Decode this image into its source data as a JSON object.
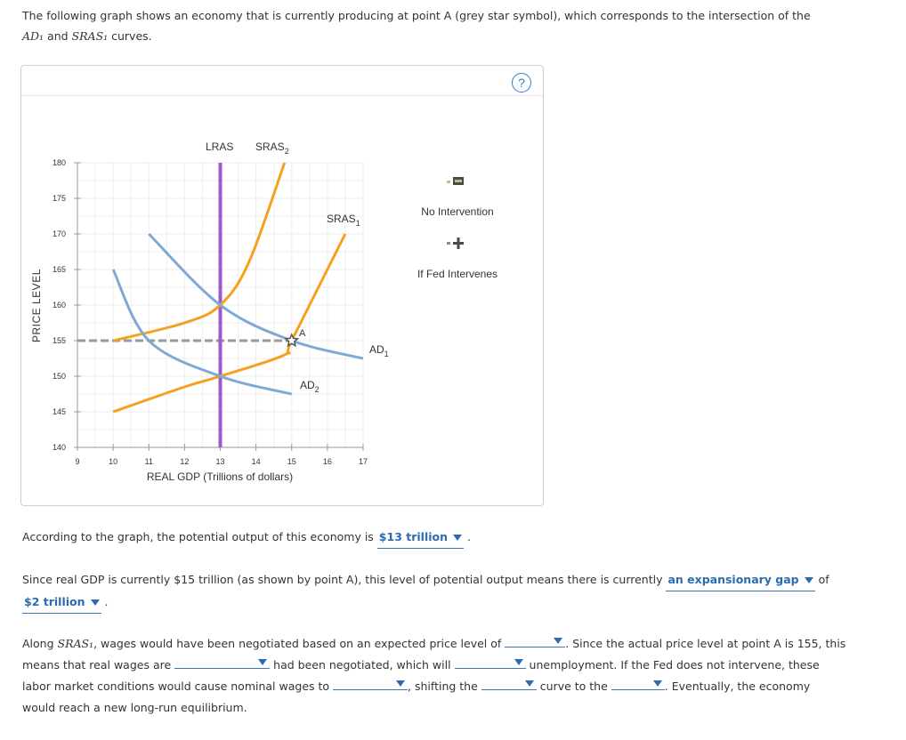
{
  "intro": {
    "text_before": "The following graph shows an economy that is currently producing at point A (grey star symbol), which corresponds to the intersection of the",
    "ad1": "AD₁",
    "and": "and",
    "sras1": "SRAS₁",
    "text_after": "curves."
  },
  "help_symbol": "?",
  "graph": {
    "ylabel": "PRICE LEVEL",
    "xlabel": "REAL GDP (Trillions of dollars)",
    "yticks": [
      "140",
      "145",
      "150",
      "155",
      "160",
      "165",
      "170",
      "175",
      "180"
    ],
    "xticks": [
      "9",
      "10",
      "11",
      "12",
      "13",
      "14",
      "15",
      "16",
      "17"
    ],
    "curve_labels": {
      "lras": "LRAS",
      "sras2": "SRAS",
      "sras2_sub": "2",
      "sras1": "SRAS",
      "sras1_sub": "1",
      "ad1": "AD",
      "ad1_sub": "1",
      "ad2": "AD",
      "ad2_sub": "2",
      "point_a": "A"
    },
    "legend": {
      "no_intervention": "No Intervention",
      "fed_intervenes": "If Fed Intervenes"
    },
    "colors": {
      "lras": "#a05ac8",
      "sras": "#f5a01f",
      "ad": "#7ea9d4",
      "dashed": "#999999",
      "star": "#555555"
    }
  },
  "chart_data": {
    "type": "line",
    "xlabel": "REAL GDP (Trillions of dollars)",
    "ylabel": "PRICE LEVEL",
    "xlim": [
      9,
      17
    ],
    "ylim": [
      140,
      180
    ],
    "series": [
      {
        "name": "LRAS",
        "x": [
          13,
          13
        ],
        "y": [
          140,
          180
        ]
      },
      {
        "name": "SRAS2",
        "x": [
          10,
          12,
          13,
          13.8,
          14.8
        ],
        "y": [
          155,
          157.5,
          160,
          166,
          180
        ]
      },
      {
        "name": "SRAS1",
        "x": [
          10,
          12,
          13,
          14.8,
          15,
          16.5
        ],
        "y": [
          145,
          148.5,
          150,
          153,
          155,
          170
        ]
      },
      {
        "name": "AD1",
        "x": [
          11,
          13,
          15,
          17
        ],
        "y": [
          170,
          160,
          155,
          152.5
        ]
      },
      {
        "name": "AD2",
        "x": [
          10,
          11,
          13,
          15
        ],
        "y": [
          165,
          155,
          150,
          147.5
        ]
      }
    ],
    "point_a": {
      "x": 15,
      "y": 155
    }
  },
  "q1": {
    "text": "According to the graph, the potential output of this economy is",
    "answer": "$13 trillion",
    "end": "."
  },
  "q2": {
    "text": "Since real GDP is currently $15 trillion (as shown by point A), this level of potential output means there is currently",
    "answer1": "an expansionary gap",
    "of": "of",
    "answer2": "$2 trillion",
    "end": "."
  },
  "q3": {
    "t1": "Along",
    "sras1": "SRAS₁",
    "t2": ", wages would have been negotiated based on an expected price level of",
    "t3": ". Since the actual price level at point A is 155, this",
    "t4": "means that real wages are",
    "t5": "had been negotiated, which will",
    "t6": "unemployment. If the Fed does not intervene, these",
    "t7": "labor market conditions would cause nominal wages to",
    "t8": ", shifting the",
    "t9": "curve to the",
    "t10": ". Eventually, the economy",
    "t11": "would reach a new long-run equilibrium."
  }
}
